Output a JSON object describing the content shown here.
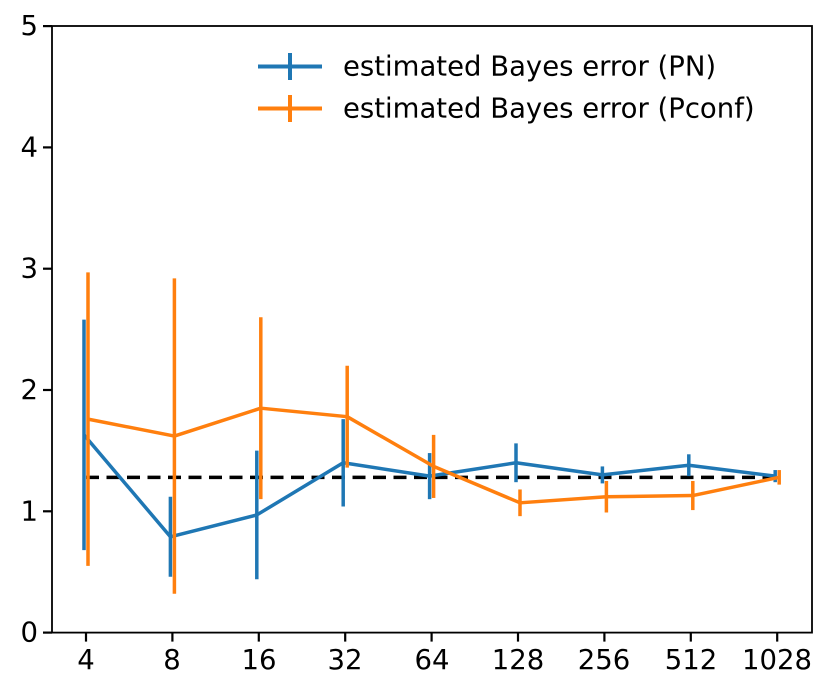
{
  "figure": {
    "background": "#ffffff"
  },
  "chart_data": {
    "type": "line",
    "title": "",
    "xlabel": "",
    "ylabel": "",
    "x_scale": "log2-categorical",
    "x_categories": [
      "4",
      "8",
      "16",
      "32",
      "64",
      "128",
      "256",
      "512",
      "1028"
    ],
    "x_values": [
      4,
      8,
      16,
      32,
      64,
      128,
      256,
      512,
      1028
    ],
    "ylim": [
      0,
      5
    ],
    "yticks": [
      "0",
      "1",
      "2",
      "3",
      "4",
      "5"
    ],
    "grid": "off",
    "legend_position": "upper center, no frame",
    "series": [
      {
        "id": "pn",
        "name": "estimated Bayes error (PN)",
        "color": "#1f77b4",
        "values": [
          1.63,
          0.79,
          0.97,
          1.4,
          1.29,
          1.4,
          1.3,
          1.38,
          1.29
        ],
        "yerr": [
          0.95,
          0.33,
          0.53,
          0.36,
          0.19,
          0.16,
          0.07,
          0.09,
          0.05
        ]
      },
      {
        "id": "pconf",
        "name": "estimated Bayes error (Pconf)",
        "color": "#ff7f0e",
        "values": [
          1.76,
          1.62,
          1.85,
          1.78,
          1.37,
          1.07,
          1.12,
          1.13,
          1.28
        ],
        "yerr": [
          1.21,
          1.3,
          0.75,
          0.42,
          0.26,
          0.11,
          0.13,
          0.12,
          0.06
        ]
      }
    ],
    "reference_line": {
      "value": 1.28,
      "style": "dashed",
      "color": "#000000",
      "meaning": "true Bayes error level"
    }
  }
}
